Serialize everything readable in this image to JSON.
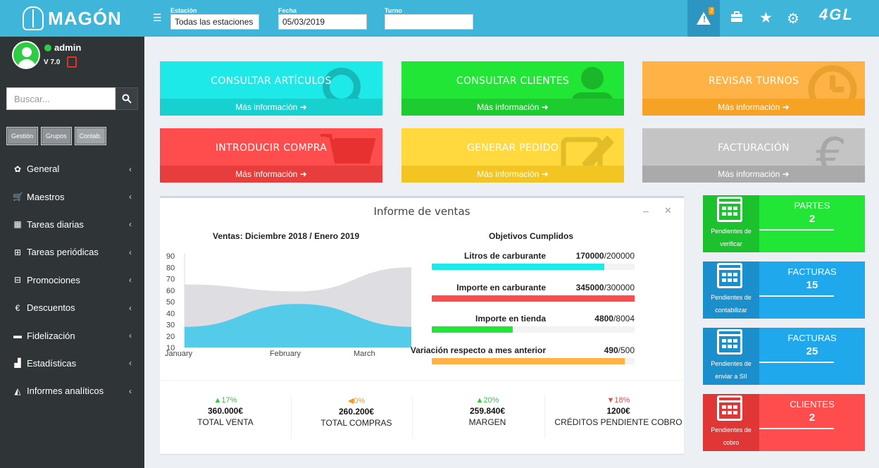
{
  "brand": {
    "name": "MAGÓN",
    "partner": "4GL"
  },
  "user": {
    "name": "admin",
    "version": "V 7.0"
  },
  "search": {
    "placeholder": "Buscar..."
  },
  "sidebar_tabs": [
    "Gestión",
    "Grupos",
    "Contab."
  ],
  "menu": [
    {
      "label": "General",
      "icon": "gear-icon"
    },
    {
      "label": "Maestros",
      "icon": "cart-icon"
    },
    {
      "label": "Tareas diarias",
      "icon": "calendar-icon"
    },
    {
      "label": "Tareas periódicas",
      "icon": "calendar-plus-icon"
    },
    {
      "label": "Promociones",
      "icon": "gift-icon"
    },
    {
      "label": "Descuentos",
      "icon": "euro-icon"
    },
    {
      "label": "Fidelización",
      "icon": "card-icon"
    },
    {
      "label": "Estadísticas",
      "icon": "bar-chart-icon"
    },
    {
      "label": "Informes analíticos",
      "icon": "area-chart-icon"
    }
  ],
  "header": {
    "station_label": "Estación",
    "station_value": "Todas las estaciones",
    "date_label": "Fecha",
    "date_value": "05/03/2019",
    "shift_label": "Turno",
    "shift_value": "",
    "alerts_count": "2"
  },
  "tiles": [
    {
      "title": "CONSULTAR ARTÍCULOS",
      "more": "Más información",
      "color": "#1de9e8",
      "foot": "#17d1d0",
      "icon": "search-icon"
    },
    {
      "title": "CONSULTAR CLIENTES",
      "more": "Más información",
      "color": "#22e635",
      "foot": "#1dcc2e",
      "icon": "user-icon"
    },
    {
      "title": "REVISAR TURNOS",
      "more": "Más información",
      "color": "#ffb347",
      "foot": "#f5a225",
      "icon": "clock-icon"
    },
    {
      "title": "INTRODUCIR COMPRA",
      "more": "Más información",
      "color": "#ff4d4d",
      "foot": "#e83d3d",
      "icon": "shopping-cart-icon"
    },
    {
      "title": "GENERAR PEDIDO",
      "more": "Más información",
      "color": "#ffd93d",
      "foot": "#f2c522",
      "icon": "edit-icon"
    },
    {
      "title": "FACTURACIÓN",
      "more": "Más información",
      "color": "#c4c4c4",
      "foot": "#aaaaaa",
      "icon": "euro-icon"
    }
  ],
  "report": {
    "title": "Informe de ventas",
    "chart_title": "Ventas: Diciembre 2018 / Enero 2019",
    "objectives_title": "Objetivos Cumplidos",
    "objectives": [
      {
        "label": "Litros de carburante",
        "value": "170000",
        "target": "/200000",
        "fraction": 0.85,
        "color": "#1de9e8"
      },
      {
        "label": "Importe en carburante",
        "value": "345000",
        "target": "/300000",
        "fraction": 1.0,
        "color": "#ff4d4d"
      },
      {
        "label": "Importe en tienda",
        "value": "4800",
        "target": "/8004",
        "fraction": 0.4,
        "color": "#22e635"
      },
      {
        "label": "Variación respecto a mes anterior",
        "value": "490",
        "target": "/500",
        "fraction": 0.95,
        "color": "#ffb347"
      }
    ],
    "kpis": [
      {
        "pct": "▲17%",
        "amount": "360.000€",
        "name": "TOTAL VENTA",
        "color": "#2ecc40"
      },
      {
        "pct": "◀0%",
        "amount": "260.200€",
        "name": "TOTAL COMPRAS",
        "color": "#f39c12"
      },
      {
        "pct": "▲20%",
        "amount": "259.840€",
        "name": "MARGEN",
        "color": "#2ecc40"
      },
      {
        "pct": "▼18%",
        "amount": "1200€",
        "name": "CRÉDITOS PENDIENTE COBRO",
        "color": "#e74c3c"
      }
    ]
  },
  "chart_data": {
    "type": "area",
    "title": "Ventas: Diciembre 2018 / Enero 2019",
    "x": [
      "January",
      "February",
      "March"
    ],
    "series": [
      {
        "values": [
          65,
          59,
          80
        ],
        "color": "#dcdce0"
      },
      {
        "values": [
          28,
          48,
          28
        ],
        "color": "#4cc9e8"
      }
    ],
    "ylim": [
      10,
      90
    ],
    "yticks": [
      10,
      20,
      30,
      40,
      50,
      60,
      70,
      80,
      90
    ],
    "grid": false
  },
  "pending": [
    {
      "title": "PARTES",
      "count": "2",
      "caption": "Pendientes de verificar",
      "color": "#22e635",
      "dark": "#1cc22e"
    },
    {
      "title": "FACTURAS",
      "count": "15",
      "caption": "Pendientes de contabilizar",
      "color": "#1fa9ec",
      "dark": "#1a8fcc"
    },
    {
      "title": "FACTURAS",
      "count": "25",
      "caption": "Pendientes de enviar a SII",
      "color": "#1fa9ec",
      "dark": "#1a8fcc"
    },
    {
      "title": "CLIENTES",
      "count": "2",
      "caption": "Pendientes de cobro",
      "color": "#ff4d4d",
      "dark": "#e03636"
    }
  ]
}
